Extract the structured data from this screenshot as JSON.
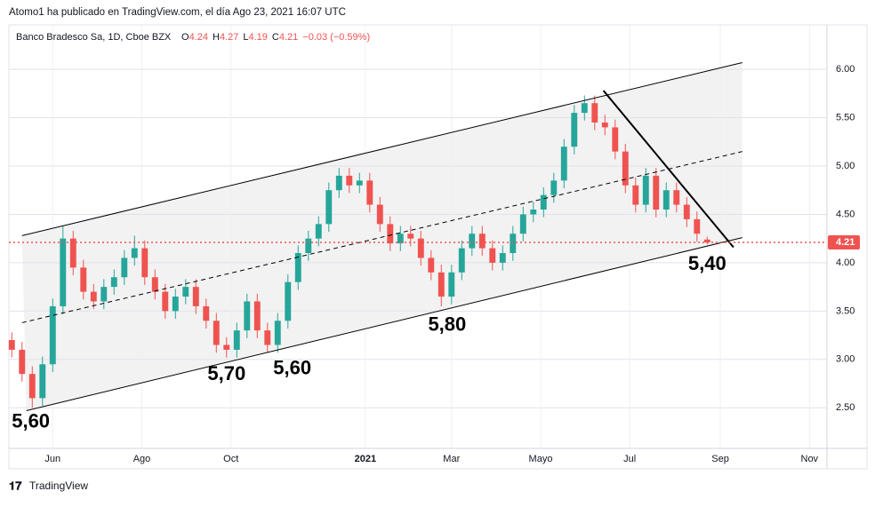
{
  "publisher_note": "Atomo1 ha publicado en TradingView.com, el día Ago 23, 2021 16:07 UTC",
  "branding": "TradingView",
  "chart_data": {
    "type": "candlestick",
    "symbol": "Banco Bradesco Sa, 1D, Cboe BZX",
    "ohlc_letters": [
      "O",
      "H",
      "L",
      "C"
    ],
    "change_label": "−0.03 (−0.59%)",
    "x": [
      -28,
      -21,
      -14,
      -7,
      0,
      7,
      14,
      21,
      28,
      35,
      42,
      49,
      56,
      63,
      70,
      77,
      84,
      91,
      98,
      105,
      112,
      119,
      126,
      133,
      140,
      147,
      154,
      161,
      168,
      175,
      182,
      189,
      196,
      203,
      210,
      217,
      224,
      231,
      238,
      245,
      252,
      259,
      266,
      273,
      280,
      287,
      294,
      301,
      308,
      315,
      322,
      329,
      336,
      343,
      350,
      357,
      364,
      371,
      378,
      385,
      392,
      399,
      406,
      413,
      420,
      427,
      434,
      441,
      448
    ],
    "open": [
      3.2,
      3.1,
      2.85,
      2.6,
      2.95,
      3.55,
      4.25,
      3.95,
      3.7,
      3.6,
      3.75,
      3.85,
      4.05,
      4.15,
      3.85,
      3.7,
      3.5,
      3.65,
      3.75,
      3.55,
      3.4,
      3.15,
      3.1,
      3.3,
      3.6,
      3.3,
      3.15,
      3.4,
      3.8,
      4.1,
      4.25,
      4.4,
      4.75,
      4.9,
      4.8,
      4.85,
      4.6,
      4.4,
      4.2,
      4.3,
      4.25,
      4.05,
      3.9,
      3.65,
      3.9,
      4.15,
      4.3,
      4.15,
      4.0,
      4.1,
      4.3,
      4.5,
      4.55,
      4.7,
      4.85,
      5.2,
      5.55,
      5.65,
      5.45,
      5.4,
      5.15,
      4.8,
      4.6,
      4.9,
      4.55,
      4.75,
      4.6,
      4.45,
      4.24
    ],
    "high": [
      3.28,
      3.18,
      2.93,
      3.03,
      3.63,
      4.38,
      4.33,
      4.03,
      3.78,
      3.83,
      3.93,
      4.13,
      4.28,
      4.23,
      3.93,
      3.78,
      3.73,
      3.83,
      3.83,
      3.63,
      3.48,
      3.23,
      3.38,
      3.68,
      3.68,
      3.38,
      3.48,
      3.88,
      4.18,
      4.33,
      4.48,
      4.83,
      4.98,
      4.98,
      4.93,
      4.93,
      4.68,
      4.48,
      4.38,
      4.38,
      4.33,
      4.13,
      3.98,
      3.98,
      4.23,
      4.38,
      4.38,
      4.23,
      4.18,
      4.38,
      4.58,
      4.63,
      4.78,
      4.93,
      5.28,
      5.63,
      5.73,
      5.73,
      5.53,
      5.48,
      5.23,
      4.88,
      4.98,
      4.98,
      4.83,
      4.83,
      4.68,
      4.53,
      4.27
    ],
    "low": [
      3.02,
      2.77,
      2.5,
      2.52,
      2.87,
      3.47,
      3.87,
      3.62,
      3.52,
      3.52,
      3.67,
      3.77,
      3.97,
      3.77,
      3.62,
      3.42,
      3.42,
      3.57,
      3.47,
      3.32,
      3.07,
      3.02,
      3.02,
      3.22,
      3.22,
      3.07,
      3.07,
      3.32,
      3.72,
      4.02,
      4.17,
      4.32,
      4.67,
      4.72,
      4.72,
      4.52,
      4.32,
      4.12,
      4.12,
      4.17,
      3.97,
      3.82,
      3.55,
      3.57,
      3.82,
      4.07,
      4.07,
      3.92,
      3.92,
      4.02,
      4.22,
      4.42,
      4.47,
      4.62,
      4.77,
      5.12,
      5.47,
      5.37,
      5.32,
      5.07,
      4.72,
      4.52,
      4.52,
      4.47,
      4.47,
      4.52,
      4.37,
      4.22,
      4.19
    ],
    "close": [
      3.1,
      2.85,
      2.6,
      2.95,
      3.55,
      4.25,
      3.95,
      3.7,
      3.6,
      3.75,
      3.85,
      4.05,
      4.15,
      3.85,
      3.7,
      3.5,
      3.65,
      3.75,
      3.55,
      3.4,
      3.15,
      3.1,
      3.3,
      3.6,
      3.3,
      3.15,
      3.4,
      3.8,
      4.1,
      4.25,
      4.4,
      4.75,
      4.9,
      4.8,
      4.85,
      4.6,
      4.4,
      4.2,
      4.3,
      4.25,
      4.05,
      3.9,
      3.65,
      3.9,
      4.15,
      4.3,
      4.15,
      4.0,
      4.1,
      4.3,
      4.5,
      4.55,
      4.7,
      4.85,
      5.2,
      5.55,
      5.65,
      5.45,
      5.4,
      5.15,
      4.8,
      4.6,
      4.9,
      4.55,
      4.75,
      4.6,
      4.45,
      4.3,
      4.21
    ],
    "colors": {
      "up": "#26a69a",
      "down": "#ef5350",
      "last_price": "#ef5350"
    },
    "last_price_line": true,
    "grid": true,
    "xlim": [
      -30,
      530
    ],
    "xticks": [
      {
        "value": 0,
        "label": "Jun"
      },
      {
        "value": 61,
        "label": "Ago"
      },
      {
        "value": 122,
        "label": "Oct"
      },
      {
        "value": 214,
        "label": "2021"
      },
      {
        "value": 273,
        "label": "Mar"
      },
      {
        "value": 334,
        "label": "Mayo"
      },
      {
        "value": 395,
        "label": "Jul"
      },
      {
        "value": 457,
        "label": "Sep"
      },
      {
        "value": 518,
        "label": "Nov"
      }
    ],
    "ylim": [
      2.08,
      6.46
    ],
    "yticks": [
      {
        "value": 2.5,
        "label": "2.50"
      },
      {
        "value": 3,
        "label": "3.00"
      },
      {
        "value": 3.5,
        "label": "3.50"
      },
      {
        "value": 4,
        "label": "4.00"
      },
      {
        "value": 4.5,
        "label": "4.50"
      },
      {
        "value": 5,
        "label": "5.00"
      },
      {
        "value": 5.5,
        "label": "5.50"
      },
      {
        "value": 6,
        "label": "6.00"
      }
    ],
    "lines": [
      {
        "x": [
          -21,
          472
        ],
        "y": [
          4.28,
          6.07
        ],
        "style": "solid",
        "width": 1
      },
      {
        "x": [
          -18,
          472
        ],
        "y": [
          2.47,
          4.26
        ],
        "style": "solid",
        "width": 1
      },
      {
        "x": [
          -21,
          472
        ],
        "y": [
          3.38,
          5.15
        ],
        "style": "dashed",
        "width": 1
      },
      {
        "x": [
          377,
          466
        ],
        "y": [
          5.78,
          4.16
        ],
        "style": "solid",
        "width": 2
      }
    ],
    "annotations": [
      {
        "text": "5,60",
        "x": -15,
        "y": 2.35
      },
      {
        "text": "5,70",
        "x": 119,
        "y": 2.84
      },
      {
        "text": "5,60",
        "x": 164,
        "y": 2.9
      },
      {
        "text": "5,80",
        "x": 270,
        "y": 3.35
      },
      {
        "text": "5,40",
        "x": 448,
        "y": 3.98
      }
    ]
  }
}
